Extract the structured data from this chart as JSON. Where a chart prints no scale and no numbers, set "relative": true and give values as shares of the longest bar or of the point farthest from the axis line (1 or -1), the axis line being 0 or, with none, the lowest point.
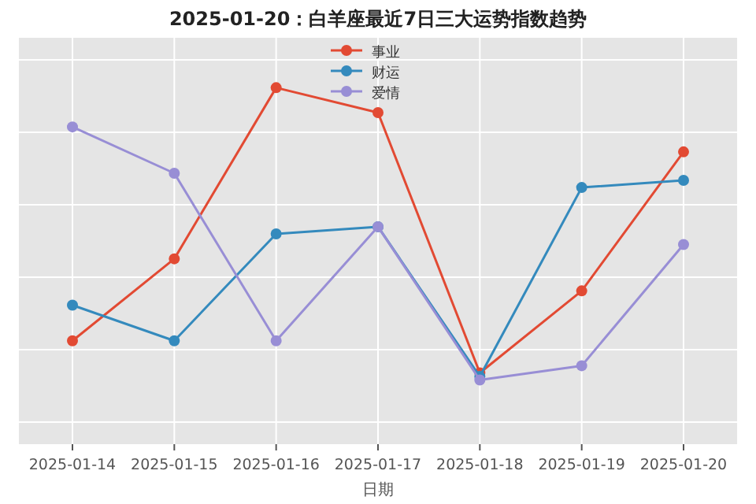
{
  "chart_data": {
    "type": "line",
    "title": "2025-01-20：白羊座最近7日三大运势指数趋势",
    "xlabel": "日期",
    "relative": true,
    "categories": [
      "2025-01-14",
      "2025-01-15",
      "2025-01-16",
      "2025-01-17",
      "2025-01-18",
      "2025-01-19",
      "2025-01-20"
    ],
    "series": [
      {
        "name": "事业",
        "color": "#e24a33",
        "values": [
          0.29,
          0.52,
          1,
          0.93,
          0.2,
          0.43,
          0.82
        ]
      },
      {
        "name": "财运",
        "color": "#348abd",
        "values": [
          0.39,
          0.29,
          0.59,
          0.61,
          0.19,
          0.72,
          0.74
        ]
      },
      {
        "name": "爱情",
        "color": "#988ed5",
        "values": [
          0.89,
          0.76,
          0.29,
          0.61,
          0.18,
          0.22,
          0.56
        ]
      }
    ],
    "grid": true,
    "legend": "top",
    "marker": "circle",
    "line_style": "solid"
  }
}
